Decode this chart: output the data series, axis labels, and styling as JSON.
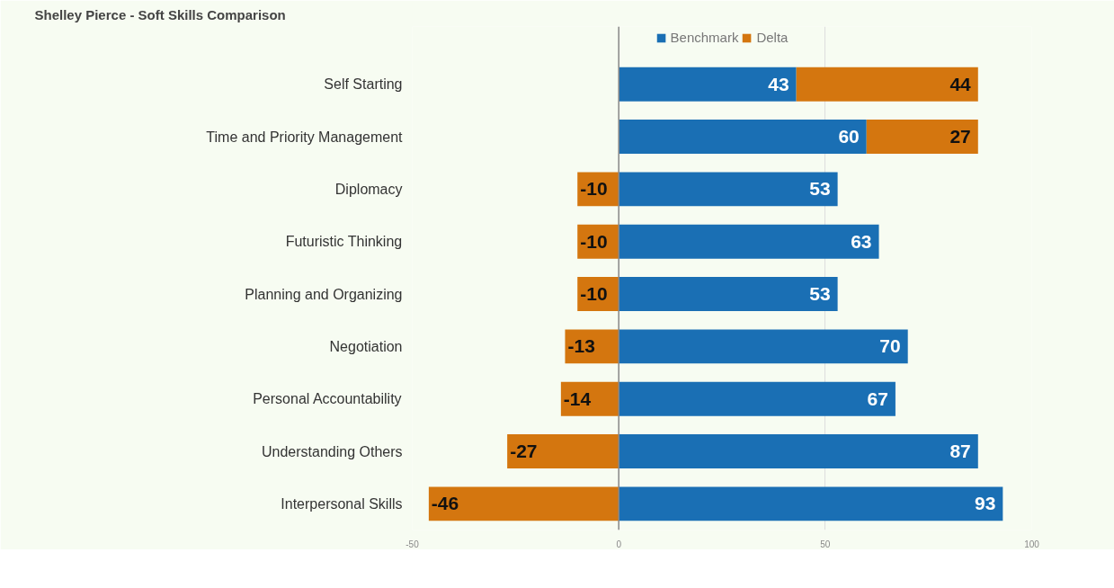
{
  "chart_data": {
    "type": "bar",
    "orientation": "horizontal",
    "stacked": true,
    "title": "Shelley Pierce - Soft Skills Comparison",
    "categories": [
      "Self Starting",
      "Time and Priority Management",
      "Diplomacy",
      "Futuristic Thinking",
      "Planning and Organizing",
      "Negotiation",
      "Personal Accountability",
      "Understanding Others",
      "Interpersonal Skills"
    ],
    "series": [
      {
        "name": "Benchmark",
        "color": "#1a6fb4",
        "values": [
          43,
          60,
          53,
          63,
          53,
          70,
          67,
          87,
          93
        ]
      },
      {
        "name": "Delta",
        "color": "#d4760f",
        "values": [
          44,
          27,
          -10,
          -10,
          -10,
          -13,
          -14,
          -27,
          -46
        ]
      }
    ],
    "xlim": [
      -50,
      100
    ],
    "xticks": [
      -50,
      0,
      50,
      100
    ],
    "grid": "x",
    "legend": "top",
    "data_labels": true
  }
}
